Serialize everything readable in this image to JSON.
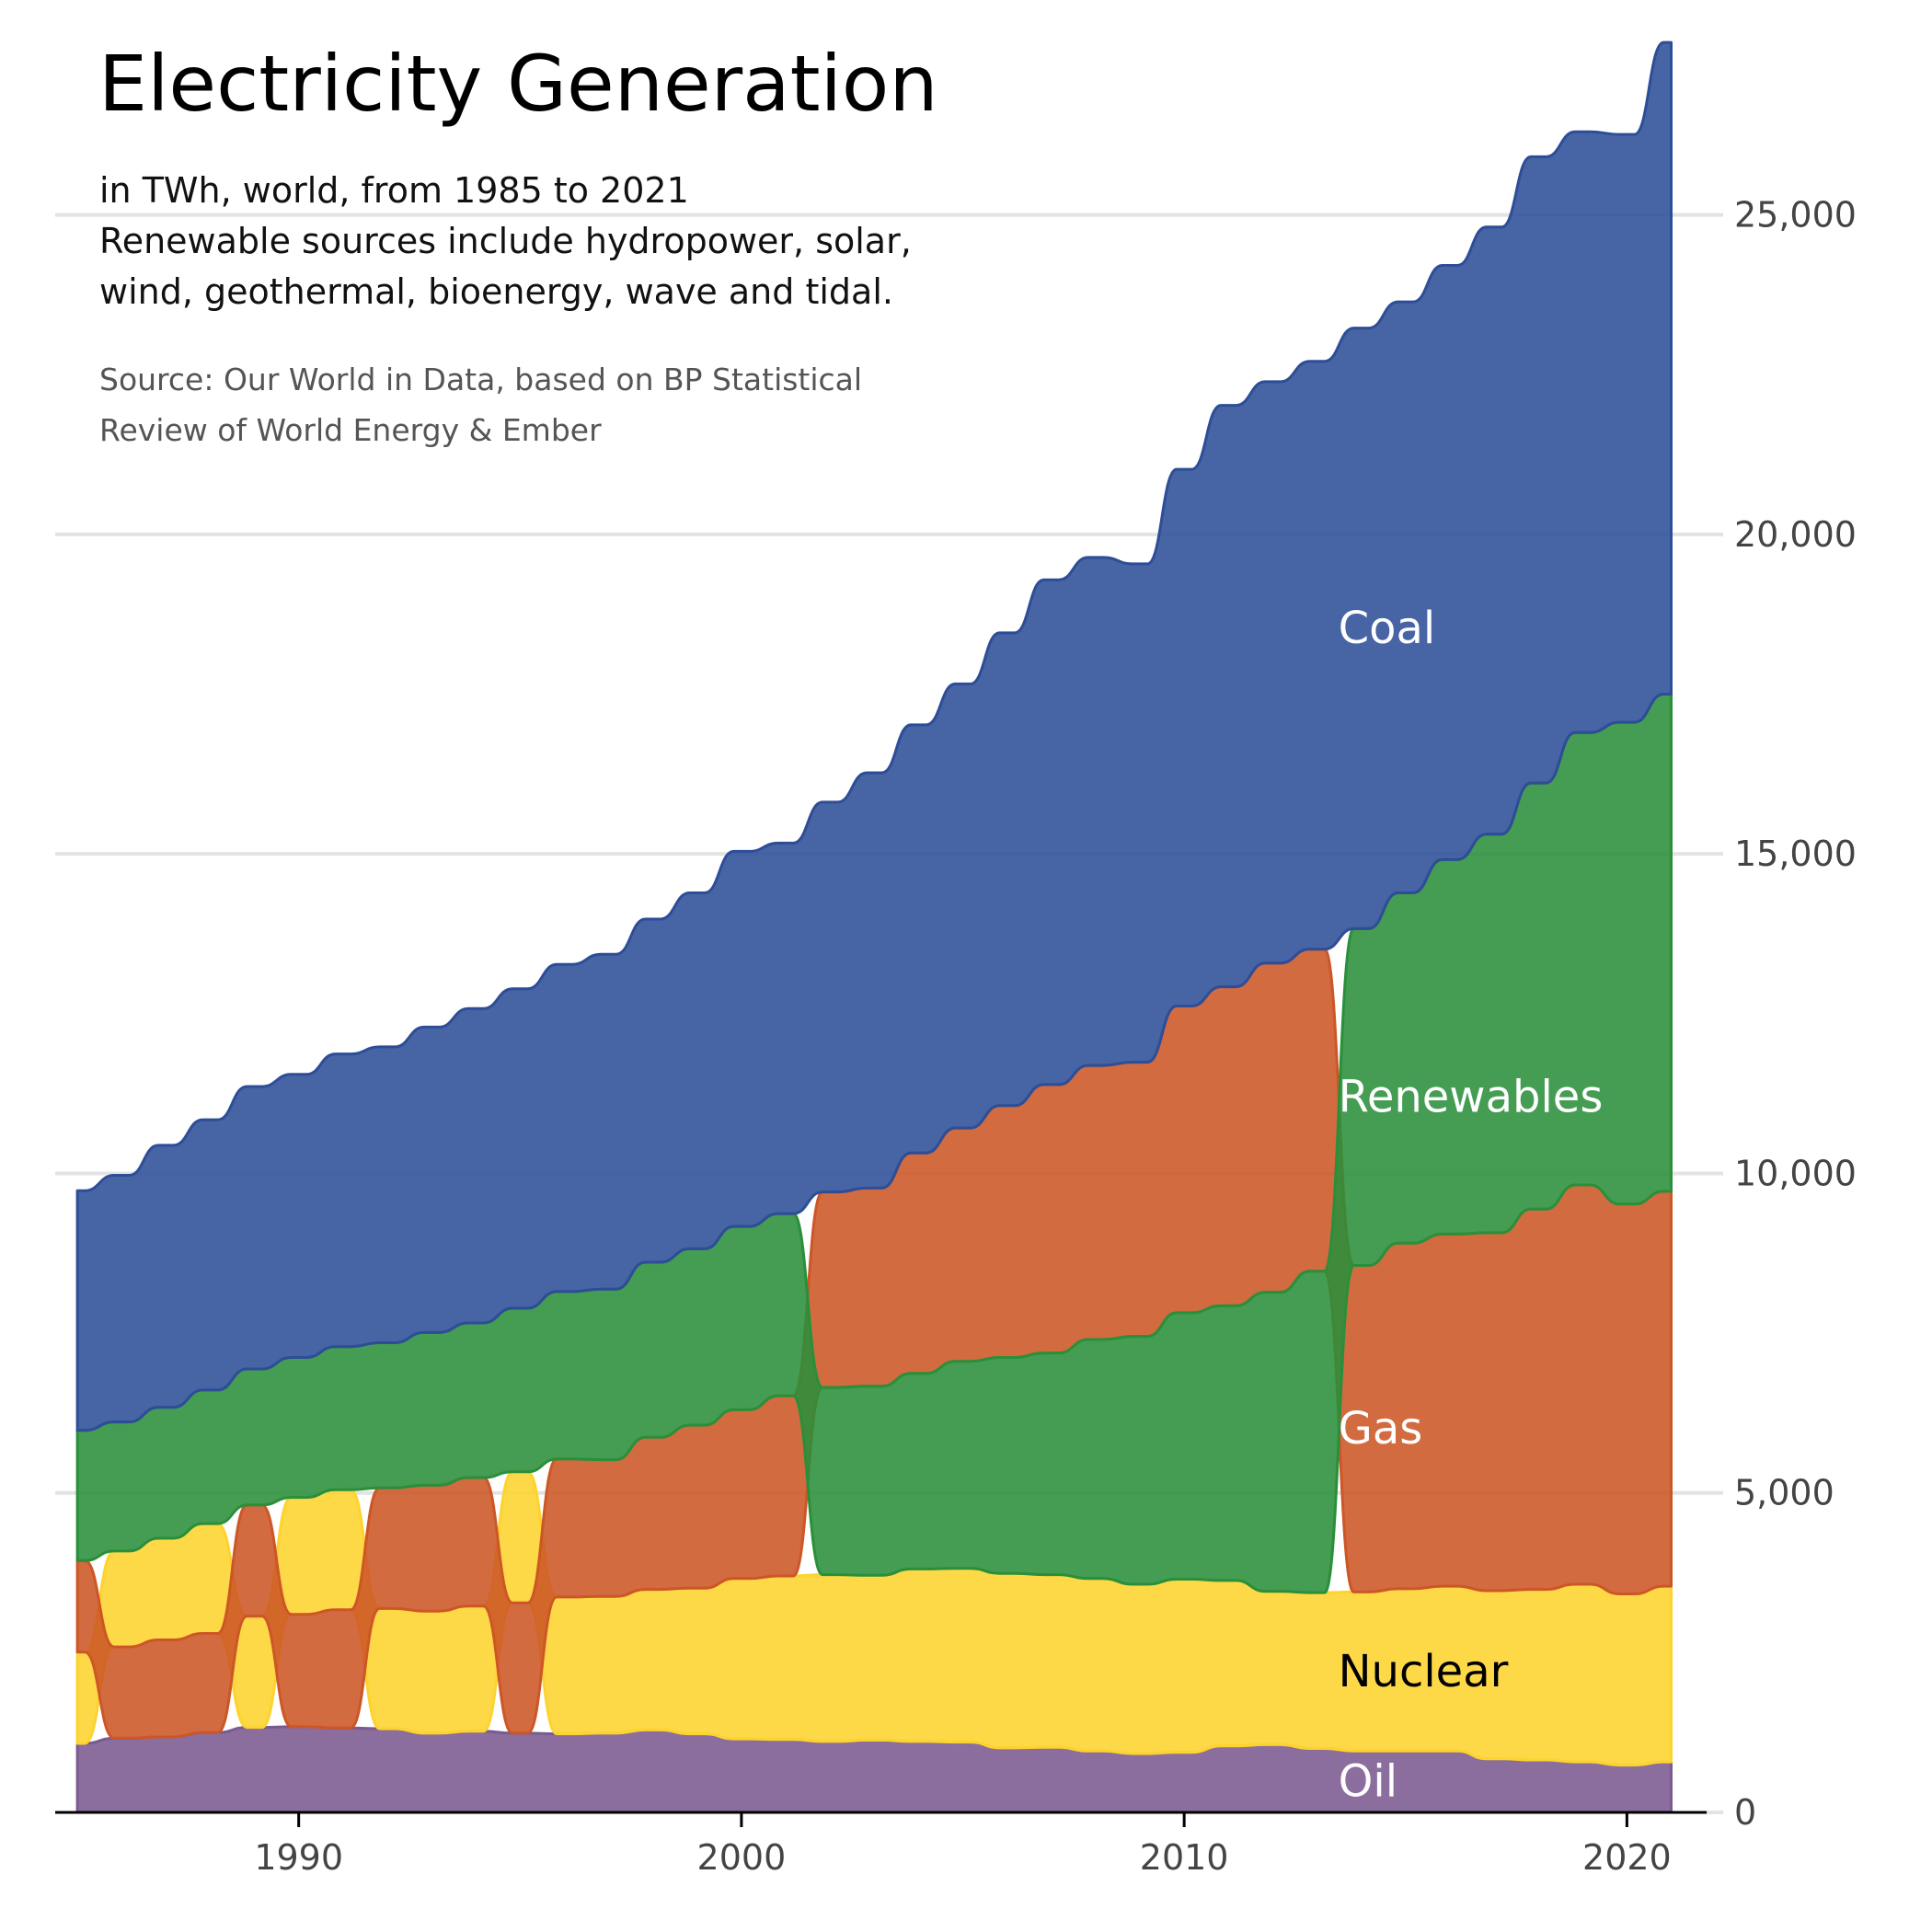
{
  "title": "Electricity Generation",
  "subtitle": [
    "in TWh, world, from 1985 to 2021",
    "Renewable sources include hydropower, solar,",
    "wind, geothermal, bioenergy, wave and tidal."
  ],
  "source": [
    "Source: Our World in Data, based on BP Statistical",
    "Review of World Energy & Ember"
  ],
  "chart_data": {
    "type": "area",
    "stacking": "stacked, layers re-ranked by size each year (largest on top)",
    "x": [
      1985,
      1986,
      1987,
      1988,
      1989,
      1990,
      1991,
      1992,
      1993,
      1994,
      1995,
      1996,
      1997,
      1998,
      1999,
      2000,
      2001,
      2002,
      2003,
      2004,
      2005,
      2006,
      2007,
      2008,
      2009,
      2010,
      2011,
      2012,
      2013,
      2014,
      2015,
      2016,
      2017,
      2018,
      2019,
      2020,
      2021
    ],
    "series": [
      {
        "name": "Oil",
        "color": "#7b5a8f",
        "label_color": "#ffffff",
        "values": [
          1080,
          1160,
          1180,
          1250,
          1330,
          1340,
          1320,
          1310,
          1240,
          1270,
          1240,
          1230,
          1240,
          1290,
          1230,
          1150,
          1140,
          1110,
          1130,
          1110,
          1100,
          1010,
          1020,
          960,
          920,
          940,
          1040,
          1060,
          1000,
          960,
          960,
          960,
          840,
          820,
          790,
          740,
          790
        ]
      },
      {
        "name": "Nuclear",
        "color": "#fdd32e",
        "label_color": "#000000",
        "values": [
          1430,
          1500,
          1590,
          1720,
          1740,
          1830,
          1880,
          1880,
          1910,
          1960,
          2050,
          2140,
          2140,
          2200,
          2280,
          2510,
          2560,
          2610,
          2580,
          2700,
          2720,
          2730,
          2700,
          2700,
          2650,
          2710,
          2590,
          2400,
          2440,
          2490,
          2540,
          2580,
          2630,
          2670,
          2780,
          2680,
          2750
        ]
      },
      {
        "name": "Gas",
        "color": "#cd5626",
        "label_color": "#ffffff",
        "values": [
          1430,
          1430,
          1520,
          1550,
          1740,
          1760,
          1850,
          1890,
          1970,
          2010,
          2040,
          2160,
          2140,
          2380,
          2550,
          2640,
          2820,
          3060,
          3100,
          3450,
          3650,
          3940,
          4200,
          4290,
          4290,
          4800,
          4990,
          5150,
          5040,
          5110,
          5410,
          5510,
          5600,
          5950,
          6250,
          6100,
          6180
        ]
      },
      {
        "name": "Renewables",
        "color": "#2a8f3a",
        "label_color": "#ffffff",
        "values": [
          2040,
          2020,
          2050,
          2090,
          2130,
          2190,
          2240,
          2270,
          2390,
          2420,
          2560,
          2620,
          2670,
          2740,
          2760,
          2870,
          2850,
          2930,
          2960,
          3060,
          3240,
          3380,
          3470,
          3740,
          3880,
          4170,
          4300,
          4680,
          5030,
          5270,
          5480,
          5860,
          6240,
          6670,
          7080,
          7540,
          7780
        ]
      },
      {
        "name": "Coal",
        "color": "#2d4e97",
        "label_color": "#ffffff",
        "values": [
          3750,
          3860,
          4100,
          4230,
          4420,
          4430,
          4580,
          4630,
          4780,
          4920,
          5000,
          5120,
          5240,
          5370,
          5570,
          5870,
          5800,
          6100,
          6500,
          6700,
          6950,
          7400,
          7900,
          7950,
          7800,
          8400,
          9100,
          9100,
          9200,
          9400,
          9250,
          9300,
          9500,
          9800,
          9400,
          9200,
          10200
        ]
      }
    ],
    "xlim": [
      1984.5,
      2021.8
    ],
    "ylim": [
      0,
      27500
    ],
    "x_ticks": [
      1990,
      2000,
      2010,
      2020
    ],
    "y_ticks": [
      0,
      5000,
      10000,
      15000,
      20000,
      25000
    ],
    "y_tick_labels": [
      "0",
      "5,000",
      "10,000",
      "15,000",
      "20,000",
      "25,000"
    ],
    "y_axis_side": "right",
    "grid": "horizontal",
    "label_year": 2014
  }
}
